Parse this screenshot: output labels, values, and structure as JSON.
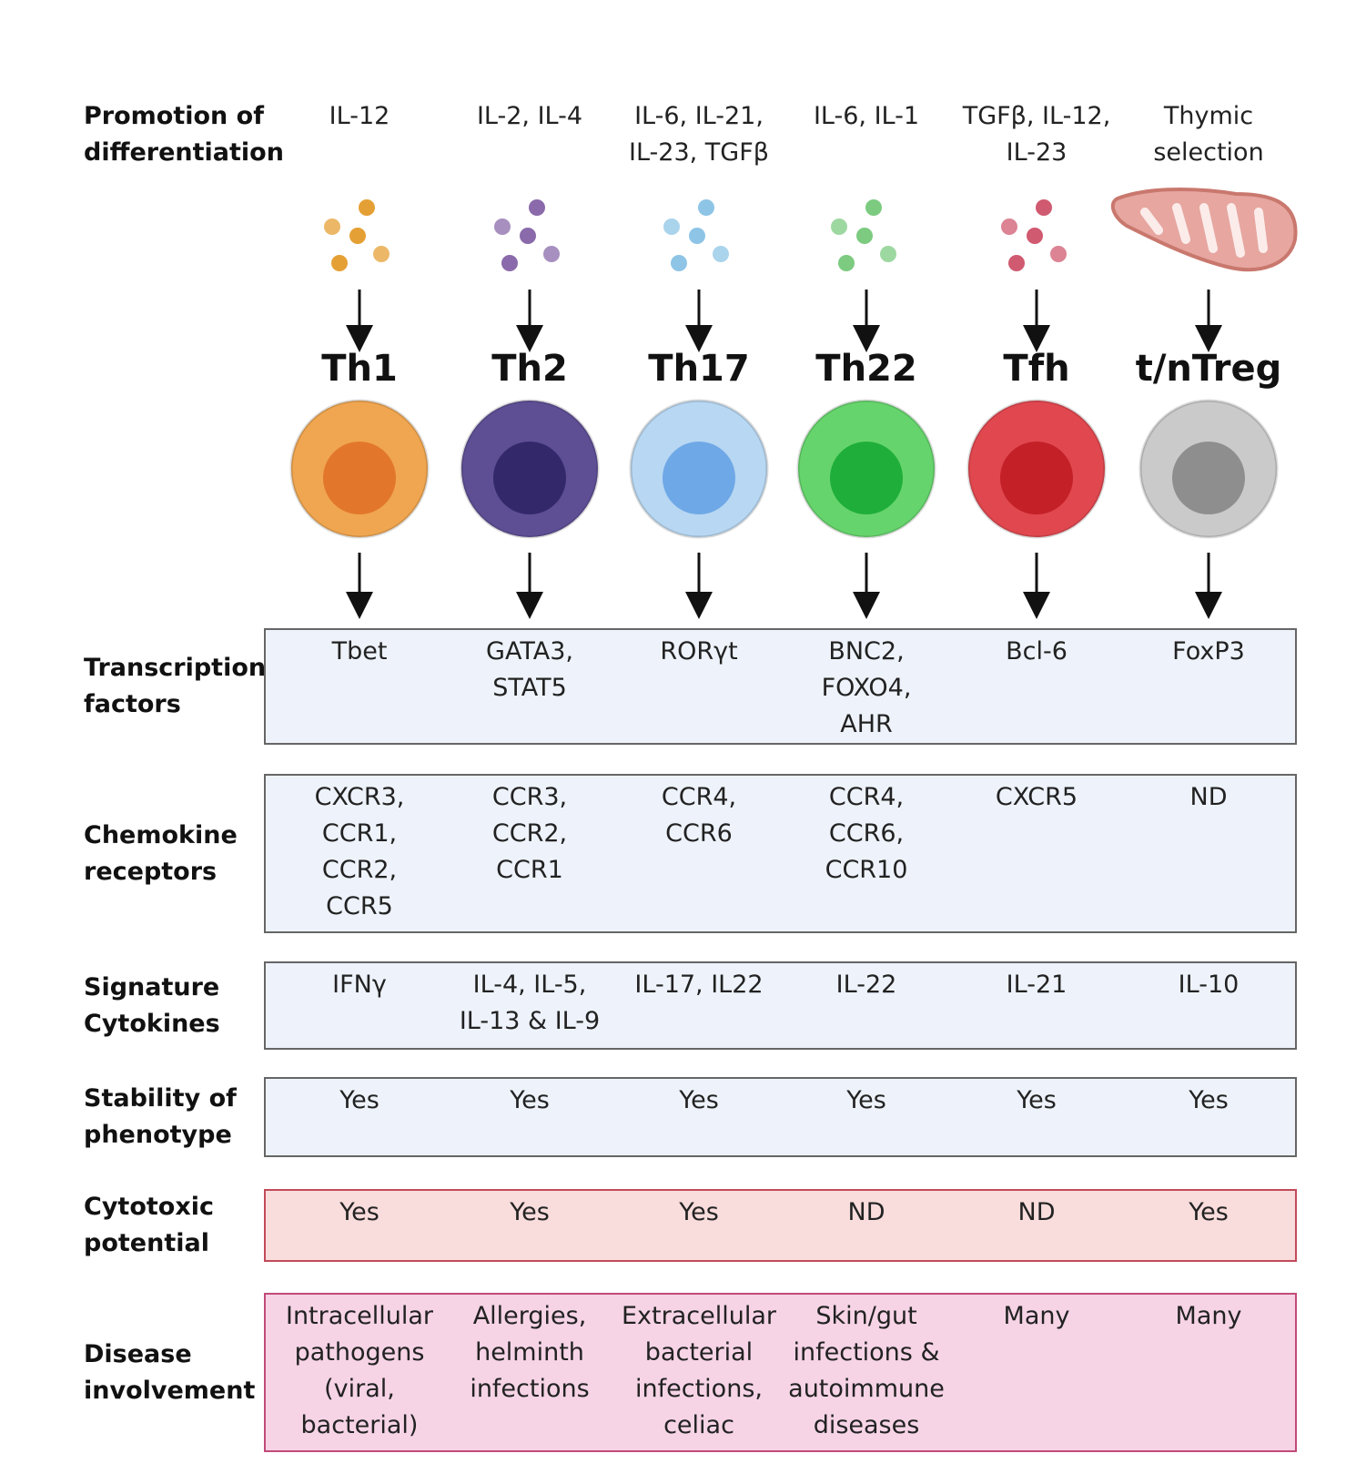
{
  "header": {
    "label": [
      "Promotion of",
      "differentiation"
    ]
  },
  "columns": [
    {
      "name": "Th1",
      "promotion": [
        "IL-12"
      ],
      "color": "#f0a650",
      "nucleus": "#e2772c",
      "dots": "#e5a035"
    },
    {
      "name": "Th2",
      "promotion": [
        "IL-2, IL-4"
      ],
      "color": "#5e4e94",
      "nucleus": "#33296a",
      "dots": "#8a6aaa"
    },
    {
      "name": "Th17",
      "promotion": [
        "IL-6, IL-21,",
        "IL-23, TGFβ"
      ],
      "color": "#b8d7f2",
      "nucleus": "#6fa8e6",
      "dots": "#8ec5e6"
    },
    {
      "name": "Th22",
      "promotion": [
        "IL-6, IL-1"
      ],
      "color": "#66d46c",
      "nucleus": "#1fae3a",
      "dots": "#7ccb80"
    },
    {
      "name": "Tfh",
      "promotion": [
        "TGFβ, IL-12,",
        "IL-23"
      ],
      "color": "#e0474f",
      "nucleus": "#c42028",
      "dots": "#d05a70"
    },
    {
      "name": "t/nTreg",
      "promotion": [
        "Thymic",
        "selection"
      ],
      "color": "#cacaca",
      "nucleus": "#8e8e8e",
      "dots": null
    }
  ],
  "rows": [
    {
      "label": [
        "Transcription",
        "factors"
      ],
      "style": "blue",
      "cells": [
        [
          "Tbet"
        ],
        [
          "GATA3,",
          "STAT5"
        ],
        [
          "RORγt"
        ],
        [
          "BNC2,",
          "FOXO4,",
          "AHR"
        ],
        [
          "Bcl-6"
        ],
        [
          "FoxP3"
        ]
      ]
    },
    {
      "label": [
        "Chemokine",
        "receptors"
      ],
      "style": "blue",
      "cells": [
        [
          "CXCR3,",
          "CCR1,",
          "CCR2,",
          "CCR5"
        ],
        [
          "CCR3,",
          "CCR2,",
          "CCR1"
        ],
        [
          "CCR4,",
          "CCR6"
        ],
        [
          "CCR4,",
          "CCR6,",
          "CCR10"
        ],
        [
          "CXCR5"
        ],
        [
          "ND"
        ]
      ]
    },
    {
      "label": [
        "Signature",
        "Cytokines"
      ],
      "style": "blue",
      "cells": [
        [
          "IFNγ"
        ],
        [
          "IL-4, IL-5,",
          "IL-13 & IL-9"
        ],
        [
          "IL-17, IL22"
        ],
        [
          "IL-22"
        ],
        [
          "IL-21"
        ],
        [
          "IL-10"
        ]
      ]
    },
    {
      "label": [
        "Stability of",
        "phenotype"
      ],
      "style": "blue",
      "cells": [
        [
          "Yes"
        ],
        [
          "Yes"
        ],
        [
          "Yes"
        ],
        [
          "Yes"
        ],
        [
          "Yes"
        ],
        [
          "Yes"
        ]
      ]
    },
    {
      "label": [
        "Cytotoxic",
        "potential"
      ],
      "style": "red",
      "cells": [
        [
          "Yes"
        ],
        [
          "Yes"
        ],
        [
          "Yes"
        ],
        [
          "ND"
        ],
        [
          "ND"
        ],
        [
          "Yes"
        ]
      ]
    },
    {
      "label": [
        "Disease",
        "involvement"
      ],
      "style": "pink",
      "cells": [
        [
          "Intracellular",
          "pathogens",
          "(viral,",
          "bacterial)"
        ],
        [
          "Allergies,",
          "helminth",
          "infections"
        ],
        [
          "Extracellular",
          "bacterial",
          "infections,",
          "celiac"
        ],
        [
          "Skin/gut",
          "infections &",
          "autoimmune",
          "diseases"
        ],
        [
          "Many"
        ],
        [
          "Many"
        ]
      ]
    }
  ]
}
